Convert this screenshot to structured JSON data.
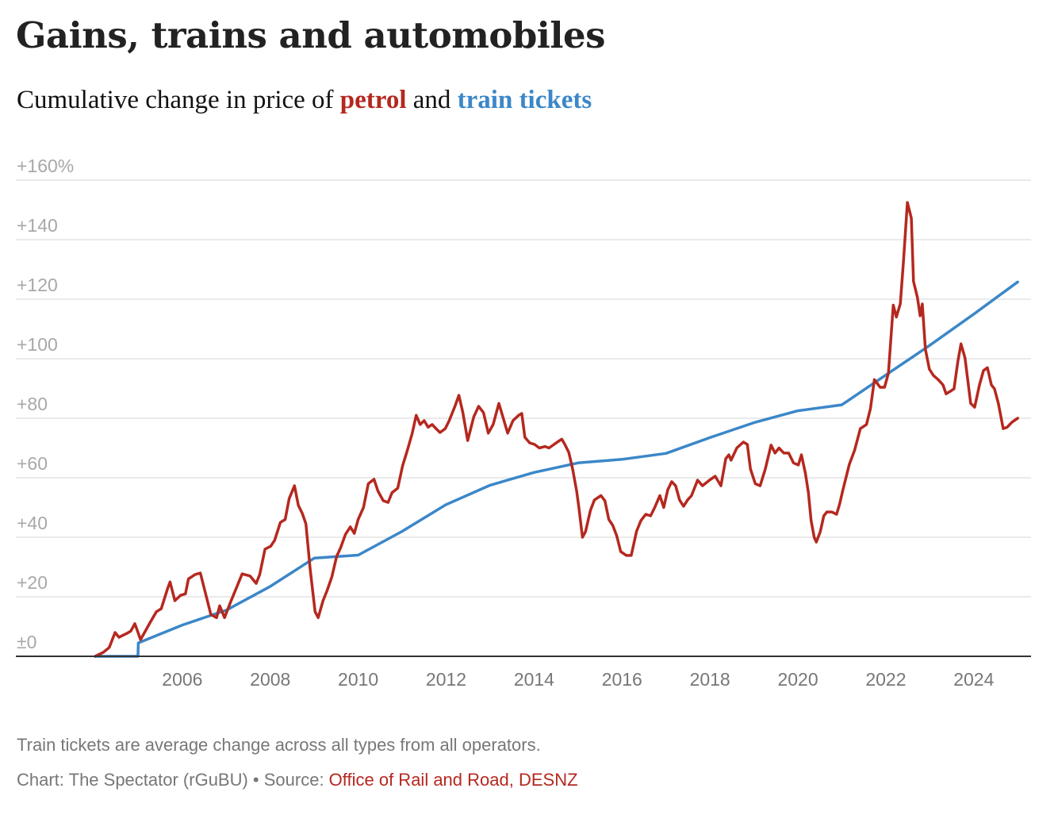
{
  "header": {
    "title": "Gains, trains and automobiles",
    "subtitle_prefix": "Cumulative change in price of ",
    "subtitle_series1": "petrol",
    "subtitle_mid": " and ",
    "subtitle_series2": "train tickets"
  },
  "footer": {
    "note": "Train tickets are average change across all types from all operators.",
    "credit_prefix": "Chart: The Spectator (rGuBU) • Source: ",
    "source": "Office of Rail and Road, DESNZ"
  },
  "colors": {
    "petrol": "#b5281f",
    "train": "#3b87c8",
    "grid": "#e3e3e3",
    "axis": "#333333"
  },
  "chart_data": {
    "type": "line",
    "title": "Gains, trains and automobiles",
    "subtitle": "Cumulative change in price of petrol and train tickets",
    "xlabel": "",
    "ylabel": "",
    "xlim": [
      2004,
      2025.3
    ],
    "ylim": [
      0,
      160
    ],
    "grid": true,
    "legend": "inline in subtitle",
    "y_ticks": [
      {
        "value": 0,
        "label": "±0"
      },
      {
        "value": 20,
        "label": "+20"
      },
      {
        "value": 40,
        "label": "+40"
      },
      {
        "value": 60,
        "label": "+60"
      },
      {
        "value": 80,
        "label": "+80"
      },
      {
        "value": 100,
        "label": "+100"
      },
      {
        "value": 120,
        "label": "+120"
      },
      {
        "value": 140,
        "label": "+140"
      },
      {
        "value": 160,
        "label": "+160%"
      }
    ],
    "x_ticks": [
      {
        "value": 2006,
        "label": "2006"
      },
      {
        "value": 2008,
        "label": "2008"
      },
      {
        "value": 2010,
        "label": "2010"
      },
      {
        "value": 2012,
        "label": "2012"
      },
      {
        "value": 2014,
        "label": "2014"
      },
      {
        "value": 2016,
        "label": "2016"
      },
      {
        "value": 2018,
        "label": "2018"
      },
      {
        "value": 2020,
        "label": "2020"
      },
      {
        "value": 2022,
        "label": "2022"
      },
      {
        "value": 2024,
        "label": "2024"
      }
    ],
    "series": [
      {
        "name": "petrol",
        "color": "#b5281f",
        "points": [
          [
            2004.02,
            0
          ],
          [
            2004.2,
            1.3
          ],
          [
            2004.34,
            3
          ],
          [
            2004.47,
            8
          ],
          [
            2004.56,
            6.4
          ],
          [
            2004.74,
            7.7
          ],
          [
            2004.83,
            8.5
          ],
          [
            2004.92,
            11
          ],
          [
            2004.96,
            9.4
          ],
          [
            2005.05,
            5.6
          ],
          [
            2005.16,
            8.5
          ],
          [
            2005.28,
            11.7
          ],
          [
            2005.41,
            15
          ],
          [
            2005.52,
            16
          ],
          [
            2005.67,
            23
          ],
          [
            2005.72,
            25
          ],
          [
            2005.83,
            18.7
          ],
          [
            2005.96,
            20.5
          ],
          [
            2006.07,
            21
          ],
          [
            2006.14,
            26
          ],
          [
            2006.29,
            27.5
          ],
          [
            2006.41,
            28
          ],
          [
            2006.52,
            21.6
          ],
          [
            2006.65,
            14
          ],
          [
            2006.78,
            13
          ],
          [
            2006.85,
            17
          ],
          [
            2006.96,
            13
          ],
          [
            2007.11,
            18.7
          ],
          [
            2007.25,
            23.7
          ],
          [
            2007.36,
            27.7
          ],
          [
            2007.54,
            27
          ],
          [
            2007.68,
            24.5
          ],
          [
            2007.76,
            27.5
          ],
          [
            2007.88,
            36
          ],
          [
            2008.01,
            37
          ],
          [
            2008.1,
            39
          ],
          [
            2008.23,
            45
          ],
          [
            2008.34,
            46
          ],
          [
            2008.43,
            53
          ],
          [
            2008.55,
            57.3
          ],
          [
            2008.64,
            50.7
          ],
          [
            2008.73,
            48
          ],
          [
            2008.81,
            44.5
          ],
          [
            2008.91,
            29
          ],
          [
            2009.02,
            15
          ],
          [
            2009.09,
            13
          ],
          [
            2009.2,
            18.7
          ],
          [
            2009.29,
            22
          ],
          [
            2009.4,
            26.7
          ],
          [
            2009.51,
            33.6
          ],
          [
            2009.6,
            36.5
          ],
          [
            2009.71,
            41
          ],
          [
            2009.82,
            43.5
          ],
          [
            2009.91,
            41.3
          ],
          [
            2010.0,
            46
          ],
          [
            2010.12,
            50
          ],
          [
            2010.23,
            58
          ],
          [
            2010.36,
            59.5
          ],
          [
            2010.45,
            55.5
          ],
          [
            2010.57,
            52.3
          ],
          [
            2010.68,
            51.7
          ],
          [
            2010.77,
            55
          ],
          [
            2010.9,
            56.5
          ],
          [
            2011.01,
            64
          ],
          [
            2011.12,
            69.3
          ],
          [
            2011.23,
            75
          ],
          [
            2011.32,
            81
          ],
          [
            2011.41,
            77.9
          ],
          [
            2011.5,
            79.2
          ],
          [
            2011.59,
            77
          ],
          [
            2011.68,
            77.9
          ],
          [
            2011.77,
            76.5
          ],
          [
            2011.86,
            75.2
          ],
          [
            2011.98,
            76.5
          ],
          [
            2012.07,
            79.2
          ],
          [
            2012.2,
            84
          ],
          [
            2012.29,
            87.7
          ],
          [
            2012.38,
            81.9
          ],
          [
            2012.49,
            72.5
          ],
          [
            2012.63,
            80.5
          ],
          [
            2012.74,
            84
          ],
          [
            2012.85,
            81.9
          ],
          [
            2012.96,
            75
          ],
          [
            2013.07,
            77.9
          ],
          [
            2013.2,
            85
          ],
          [
            2013.29,
            80.5
          ],
          [
            2013.4,
            75
          ],
          [
            2013.52,
            79.2
          ],
          [
            2013.65,
            81
          ],
          [
            2013.72,
            81.6
          ],
          [
            2013.79,
            73.6
          ],
          [
            2013.9,
            71.7
          ],
          [
            2014.01,
            71.2
          ],
          [
            2014.12,
            70
          ],
          [
            2014.25,
            70.5
          ],
          [
            2014.34,
            70
          ],
          [
            2014.52,
            71.9
          ],
          [
            2014.63,
            73
          ],
          [
            2014.7,
            71.2
          ],
          [
            2014.79,
            68.5
          ],
          [
            2014.88,
            62.7
          ],
          [
            2014.97,
            55.3
          ],
          [
            2015.02,
            50
          ],
          [
            2015.1,
            40
          ],
          [
            2015.17,
            41.9
          ],
          [
            2015.28,
            49
          ],
          [
            2015.37,
            52.5
          ],
          [
            2015.52,
            54
          ],
          [
            2015.61,
            52.3
          ],
          [
            2015.7,
            46
          ],
          [
            2015.79,
            44
          ],
          [
            2015.88,
            40.5
          ],
          [
            2015.97,
            35.2
          ],
          [
            2016.1,
            33.9
          ],
          [
            2016.21,
            33.9
          ],
          [
            2016.33,
            42
          ],
          [
            2016.43,
            45.6
          ],
          [
            2016.54,
            47.7
          ],
          [
            2016.65,
            47.2
          ],
          [
            2016.74,
            49.9
          ],
          [
            2016.86,
            54
          ],
          [
            2016.95,
            50
          ],
          [
            2017.04,
            55.9
          ],
          [
            2017.13,
            58.7
          ],
          [
            2017.22,
            57.3
          ],
          [
            2017.31,
            52.5
          ],
          [
            2017.4,
            50.4
          ],
          [
            2017.49,
            52.5
          ],
          [
            2017.58,
            54
          ],
          [
            2017.72,
            59.2
          ],
          [
            2017.83,
            57.3
          ],
          [
            2017.99,
            59.2
          ],
          [
            2018.12,
            60.5
          ],
          [
            2018.25,
            57.3
          ],
          [
            2018.36,
            66.4
          ],
          [
            2018.43,
            67.7
          ],
          [
            2018.48,
            65.9
          ],
          [
            2018.61,
            70
          ],
          [
            2018.76,
            72
          ],
          [
            2018.85,
            71.2
          ],
          [
            2018.92,
            63
          ],
          [
            2019.03,
            58
          ],
          [
            2019.14,
            57.3
          ],
          [
            2019.26,
            63
          ],
          [
            2019.39,
            71
          ],
          [
            2019.48,
            68.3
          ],
          [
            2019.57,
            70
          ],
          [
            2019.68,
            68.3
          ],
          [
            2019.79,
            68.3
          ],
          [
            2019.9,
            65
          ],
          [
            2020.01,
            64.3
          ],
          [
            2020.08,
            67.7
          ],
          [
            2020.17,
            61.5
          ],
          [
            2020.24,
            55
          ],
          [
            2020.3,
            45.6
          ],
          [
            2020.37,
            40
          ],
          [
            2020.42,
            38.4
          ],
          [
            2020.51,
            41.9
          ],
          [
            2020.59,
            47.2
          ],
          [
            2020.66,
            48.5
          ],
          [
            2020.77,
            48.5
          ],
          [
            2020.88,
            47.7
          ],
          [
            2020.95,
            51.2
          ],
          [
            2021.02,
            55.7
          ],
          [
            2021.17,
            64.5
          ],
          [
            2021.29,
            69.3
          ],
          [
            2021.42,
            76.5
          ],
          [
            2021.56,
            77.9
          ],
          [
            2021.65,
            83.2
          ],
          [
            2021.74,
            93
          ],
          [
            2021.87,
            90.4
          ],
          [
            2021.97,
            90.4
          ],
          [
            2022.06,
            95.2
          ],
          [
            2022.17,
            118
          ],
          [
            2022.24,
            114
          ],
          [
            2022.33,
            118.5
          ],
          [
            2022.4,
            132.5
          ],
          [
            2022.49,
            152.5
          ],
          [
            2022.58,
            147.2
          ],
          [
            2022.63,
            126
          ],
          [
            2022.72,
            120.5
          ],
          [
            2022.78,
            114.4
          ],
          [
            2022.83,
            118.4
          ],
          [
            2022.9,
            103.2
          ],
          [
            2022.99,
            96.5
          ],
          [
            2023.08,
            94.4
          ],
          [
            2023.19,
            93
          ],
          [
            2023.3,
            91.2
          ],
          [
            2023.37,
            88.2
          ],
          [
            2023.46,
            89
          ],
          [
            2023.55,
            89.9
          ],
          [
            2023.64,
            99.2
          ],
          [
            2023.71,
            105
          ],
          [
            2023.8,
            100.3
          ],
          [
            2023.93,
            85
          ],
          [
            2024.02,
            83.7
          ],
          [
            2024.13,
            91.2
          ],
          [
            2024.22,
            96
          ],
          [
            2024.31,
            97
          ],
          [
            2024.4,
            91.2
          ],
          [
            2024.47,
            89.9
          ],
          [
            2024.56,
            85
          ],
          [
            2024.67,
            76.5
          ],
          [
            2024.76,
            77
          ],
          [
            2024.87,
            78.7
          ],
          [
            2025.0,
            80
          ]
        ]
      },
      {
        "name": "train tickets",
        "color": "#3b87c8",
        "points": [
          [
            2004.02,
            0
          ],
          [
            2004.99,
            0
          ],
          [
            2005.0,
            4.5
          ],
          [
            2006.0,
            10.5
          ],
          [
            2007.0,
            15.5
          ],
          [
            2008.0,
            23.5
          ],
          [
            2009.0,
            33
          ],
          [
            2010.0,
            34
          ],
          [
            2011.0,
            42
          ],
          [
            2012.0,
            51
          ],
          [
            2013.0,
            57.5
          ],
          [
            2014.0,
            61.8
          ],
          [
            2015.0,
            65
          ],
          [
            2016.0,
            66.2
          ],
          [
            2017.0,
            68.2
          ],
          [
            2018.0,
            73.5
          ],
          [
            2019.0,
            78.5
          ],
          [
            2020.0,
            82.5
          ],
          [
            2021.0,
            84.5
          ],
          [
            2022.0,
            94.5
          ],
          [
            2023.0,
            104.5
          ],
          [
            2024.0,
            115
          ],
          [
            2025.0,
            125.8
          ]
        ]
      }
    ]
  }
}
